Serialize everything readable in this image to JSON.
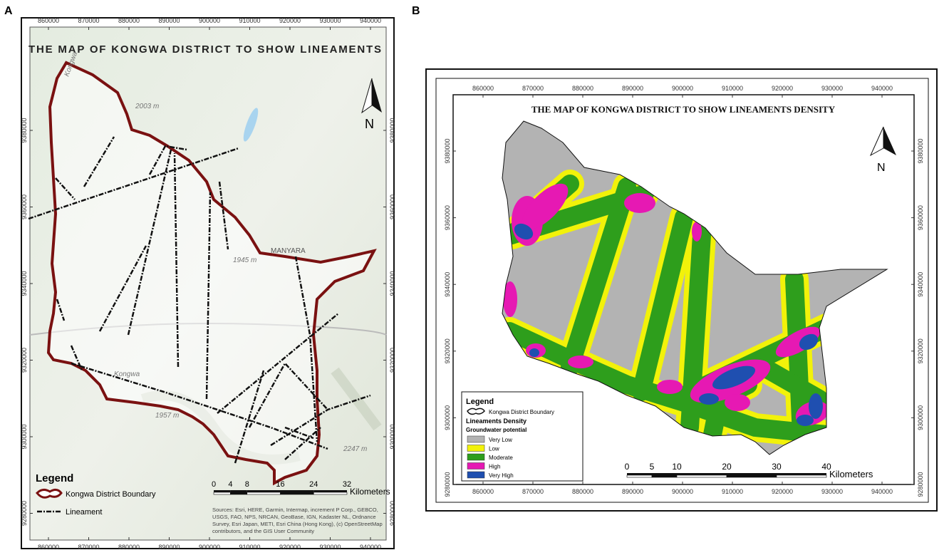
{
  "panels": [
    {
      "label": "A",
      "title": "THE MAP OF KONGWA DISTRICT TO SHOW LINEAMENTS",
      "xticks": [
        860000,
        870000,
        880000,
        890000,
        900000,
        910000,
        920000,
        930000,
        940000
      ],
      "yticks": [
        9380000,
        9360000,
        9340000,
        9320000,
        9300000,
        9280000
      ],
      "north": "N",
      "places": [
        "Kongwa",
        "2003 m",
        "1945 m",
        "MANYARA",
        "1957 m",
        "2247 m",
        "Kongwa"
      ],
      "legend": {
        "title": "Legend",
        "items": [
          "Kongwa District Boundary",
          "Lineament"
        ]
      },
      "scale": {
        "ticks": [
          0,
          4,
          8,
          16,
          24,
          32
        ],
        "unit": "Kilometers"
      },
      "sources": [
        "Sources: Esri, HERE, Garmin, Intermap, increment P Corp., GEBCO,",
        "USGS, FAO, NPS, NRCAN, GeoBase, IGN, Kadaster NL, Ordnance",
        "Survey, Esri Japan, METI, Esri China (Hong Kong), (c) OpenStreetMap",
        "contributors, and the GIS User Community"
      ]
    },
    {
      "label": "B",
      "title": "THE MAP OF  KONGWA DISTRICT TO SHOW LINEAMENTS DENSITY",
      "xticks": [
        860000,
        870000,
        880000,
        890000,
        900000,
        910000,
        920000,
        930000,
        940000
      ],
      "yticks": [
        9380000,
        9360000,
        9340000,
        9320000,
        9300000,
        9280000
      ],
      "north": "N",
      "legend": {
        "title": "Legend",
        "boundary": "Kongwa District Boundary",
        "subtitle": "Lineaments Density",
        "group": "Groundwater potential",
        "classes": [
          {
            "name": "Very Low",
            "color": "#b3b3b3"
          },
          {
            "name": "Low",
            "color": "#f2f20a"
          },
          {
            "name": "Moderate",
            "color": "#2e9e1c"
          },
          {
            "name": "High",
            "color": "#e619b3"
          },
          {
            "name": "Very High",
            "color": "#1f4fb0"
          }
        ]
      },
      "scale": {
        "ticks": [
          0,
          5,
          10,
          20,
          30,
          40
        ],
        "unit": "Kilometers"
      }
    }
  ]
}
